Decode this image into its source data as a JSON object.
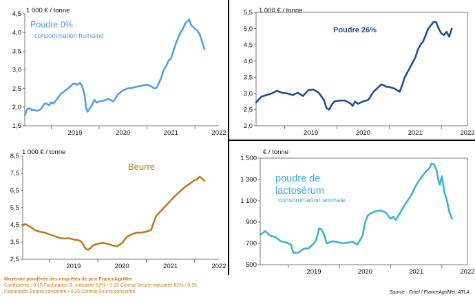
{
  "chart_data": [
    {
      "type": "line",
      "unit_label": "1 000 € / tonne",
      "title": "Poudre 0%",
      "subtitle": "consommation humaine",
      "color": "#4f9fe6",
      "ylim": [
        1.5,
        4.5
      ],
      "yticks": [
        "1,5",
        "2,0",
        "2,5",
        "3,0",
        "3,5",
        "4,0",
        "4,5"
      ],
      "xlim": [
        2018.45,
        2022.5
      ],
      "xtick_labels": [
        "2019",
        "2020",
        "2021",
        "2022"
      ],
      "series": [
        {
          "x": [
            2018.45,
            2018.5,
            2018.55,
            2018.6,
            2018.65,
            2018.7,
            2018.75,
            2018.8,
            2018.85,
            2018.9,
            2018.95,
            2019.0,
            2019.05,
            2019.1,
            2019.2,
            2019.3,
            2019.35,
            2019.4,
            2019.45,
            2019.5,
            2019.55,
            2019.6,
            2019.65,
            2019.7,
            2019.73,
            2019.76,
            2019.8,
            2019.85,
            2019.9,
            2019.95,
            2020.0,
            2020.1,
            2020.2,
            2020.3,
            2020.4,
            2020.5,
            2020.6,
            2020.7,
            2020.8,
            2020.9,
            2021.0,
            2021.1,
            2021.15,
            2021.2,
            2021.25,
            2021.3,
            2021.35,
            2021.4,
            2021.45,
            2021.5,
            2021.55,
            2021.6,
            2021.65,
            2021.7,
            2021.75,
            2021.8,
            2021.85,
            2021.88,
            2021.92,
            2021.96,
            2022.0,
            2022.05,
            2022.1,
            2022.15,
            2022.2
          ],
          "y": [
            1.78,
            1.95,
            1.97,
            1.92,
            1.93,
            1.9,
            1.92,
            1.97,
            2.08,
            2.1,
            2.05,
            2.12,
            2.1,
            2.18,
            2.35,
            2.45,
            2.5,
            2.55,
            2.62,
            2.63,
            2.6,
            2.65,
            2.55,
            2.32,
            1.98,
            1.88,
            1.95,
            2.05,
            2.2,
            2.12,
            2.15,
            2.18,
            2.22,
            2.15,
            2.35,
            2.45,
            2.5,
            2.52,
            2.55,
            2.58,
            2.6,
            2.55,
            2.5,
            2.52,
            2.65,
            2.8,
            3.0,
            3.1,
            3.25,
            3.3,
            3.5,
            3.7,
            3.85,
            4.0,
            4.1,
            4.25,
            4.3,
            4.35,
            4.2,
            4.15,
            4.1,
            4.05,
            3.95,
            3.75,
            3.55
          ]
        }
      ]
    },
    {
      "type": "line",
      "unit_label": "1 000 € / tonne",
      "title": "Poudre 26%",
      "color": "#1f4e91",
      "ylim": [
        2.0,
        5.5
      ],
      "yticks": [
        "2,0",
        "2,5",
        "3,0",
        "3,5",
        "4,0",
        "4,5",
        "5,0",
        "5,5"
      ],
      "xlim": [
        2018.45,
        2022.5
      ],
      "xtick_labels": [
        "2019",
        "2020",
        "2021",
        "2022"
      ],
      "series": [
        {
          "x": [
            2018.45,
            2018.55,
            2018.65,
            2018.75,
            2018.85,
            2018.95,
            2019.05,
            2019.15,
            2019.25,
            2019.35,
            2019.45,
            2019.55,
            2019.65,
            2019.75,
            2019.8,
            2019.85,
            2019.9,
            2019.95,
            2020.05,
            2020.15,
            2020.25,
            2020.3,
            2020.35,
            2020.4,
            2020.5,
            2020.6,
            2020.7,
            2020.8,
            2020.85,
            2020.9,
            2020.95,
            2021.0,
            2021.1,
            2021.2,
            2021.25,
            2021.3,
            2021.4,
            2021.5,
            2021.55,
            2021.6,
            2021.65,
            2021.7,
            2021.75,
            2021.8,
            2021.85,
            2021.9,
            2021.95,
            2022.0,
            2022.05,
            2022.1,
            2022.15,
            2022.2
          ],
          "y": [
            2.72,
            2.9,
            2.95,
            3.0,
            3.08,
            3.02,
            3.0,
            2.95,
            3.02,
            2.92,
            3.1,
            3.12,
            3.02,
            2.8,
            2.55,
            2.5,
            2.65,
            2.75,
            2.78,
            2.78,
            2.7,
            2.62,
            2.75,
            2.68,
            2.75,
            2.8,
            3.05,
            3.2,
            3.28,
            3.25,
            3.2,
            3.2,
            3.15,
            3.05,
            3.25,
            3.5,
            3.8,
            4.1,
            4.35,
            4.5,
            4.6,
            4.8,
            5.0,
            5.1,
            5.2,
            5.2,
            5.0,
            4.85,
            4.8,
            4.9,
            4.75,
            5.0
          ]
        }
      ]
    },
    {
      "type": "line",
      "unit_label": "1 000 € / tonne",
      "title": "Beurre",
      "color": "#c07a1a",
      "ylim": [
        2.5,
        8.5
      ],
      "yticks": [
        "2,5",
        "3,5",
        "4,5",
        "5,5",
        "6,5",
        "7,5",
        "8,5"
      ],
      "xlim": [
        2018.45,
        2022.5
      ],
      "xtick_labels": [
        "2019",
        "2020",
        "2021",
        "2022"
      ],
      "series": [
        {
          "x": [
            2018.45,
            2018.5,
            2018.6,
            2018.7,
            2018.8,
            2018.9,
            2019.0,
            2019.1,
            2019.2,
            2019.3,
            2019.4,
            2019.5,
            2019.6,
            2019.65,
            2019.7,
            2019.75,
            2019.8,
            2019.85,
            2019.9,
            2020.0,
            2020.1,
            2020.2,
            2020.3,
            2020.4,
            2020.5,
            2020.6,
            2020.7,
            2020.8,
            2020.9,
            2021.0,
            2021.1,
            2021.15,
            2021.2,
            2021.3,
            2021.4,
            2021.5,
            2021.6,
            2021.7,
            2021.8,
            2021.9,
            2022.0,
            2022.05,
            2022.1,
            2022.15,
            2022.2
          ],
          "y": [
            4.45,
            4.55,
            4.4,
            4.2,
            4.1,
            4.05,
            3.95,
            3.85,
            3.75,
            3.7,
            3.72,
            3.65,
            3.6,
            3.55,
            3.35,
            3.1,
            3.05,
            3.15,
            3.3,
            3.4,
            3.45,
            3.4,
            3.3,
            3.25,
            3.45,
            3.8,
            3.95,
            4.05,
            4.05,
            4.1,
            4.2,
            4.6,
            5.0,
            5.3,
            5.6,
            5.9,
            6.2,
            6.45,
            6.7,
            6.9,
            7.1,
            7.15,
            7.3,
            7.2,
            7.05
          ]
        }
      ]
    },
    {
      "type": "line",
      "unit_label": "€ / tonne",
      "title": "poudre de lactosérum",
      "subtitle": "consommation animale",
      "color": "#3bb0d6",
      "ylim": [
        500,
        1500
      ],
      "yticks": [
        "500",
        "700",
        "900",
        "1 100",
        "1 300",
        "1 500"
      ],
      "xlim": [
        2018.45,
        2022.5
      ],
      "xtick_labels": [
        "2019",
        "2020",
        "2021",
        "2022"
      ],
      "series": [
        {
          "x": [
            2018.45,
            2018.55,
            2018.65,
            2018.75,
            2018.85,
            2018.95,
            2019.0,
            2019.05,
            2019.1,
            2019.2,
            2019.3,
            2019.4,
            2019.5,
            2019.55,
            2019.6,
            2019.65,
            2019.7,
            2019.75,
            2019.85,
            2019.95,
            2020.05,
            2020.15,
            2020.25,
            2020.35,
            2020.45,
            2020.5,
            2020.55,
            2020.6,
            2020.7,
            2020.8,
            2020.9,
            2021.0,
            2021.05,
            2021.1,
            2021.2,
            2021.3,
            2021.4,
            2021.5,
            2021.6,
            2021.7,
            2021.75,
            2021.8,
            2021.85,
            2021.9,
            2021.93,
            2021.96,
            2022.0,
            2022.05,
            2022.1,
            2022.15,
            2022.2
          ],
          "y": [
            780,
            815,
            770,
            760,
            720,
            710,
            700,
            690,
            610,
            615,
            650,
            655,
            700,
            740,
            840,
            830,
            780,
            700,
            720,
            715,
            700,
            705,
            715,
            690,
            770,
            900,
            960,
            980,
            1000,
            1010,
            990,
            930,
            950,
            920,
            1000,
            1080,
            1150,
            1250,
            1320,
            1380,
            1400,
            1450,
            1440,
            1380,
            1300,
            1250,
            1330,
            1180,
            1100,
            990,
            930
          ]
        }
      ]
    }
  ],
  "footnote": {
    "line1": "Moyenne pondérée des enquêtes de prix FranceAgriMer",
    "line2": "Coefficients : 0,15 Facturation B. industriel 82% / 0,15 Contrat Beurre industriel 82% / 0,35",
    "line3": "Facturation Beurre concentré / 0,35 Contrat Beurre concentré"
  },
  "source": "Source : Cniel / FranceAgriMer, ATLA"
}
